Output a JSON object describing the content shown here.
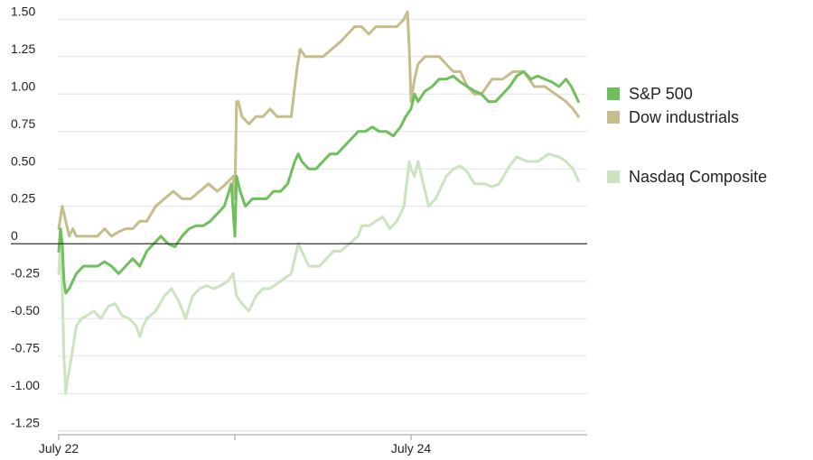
{
  "chart_data": {
    "type": "line",
    "title": "",
    "xlabel": "",
    "ylabel": "",
    "ylim": [
      -1.3,
      1.58
    ],
    "yticks": [
      {
        "value": 1.5,
        "label": "1.50"
      },
      {
        "value": 1.25,
        "label": "1.25"
      },
      {
        "value": 1.0,
        "label": "1.00"
      },
      {
        "value": 0.75,
        "label": "0.75"
      },
      {
        "value": 0.5,
        "label": "0.50"
      },
      {
        "value": 0.25,
        "label": "0.25"
      },
      {
        "value": 0,
        "label": "0"
      },
      {
        "value": -0.25,
        "label": "-0.25"
      },
      {
        "value": -0.5,
        "label": "-0.50"
      },
      {
        "value": -0.75,
        "label": "-0.75"
      },
      {
        "value": -1.0,
        "label": "-1.00"
      },
      {
        "value": -1.25,
        "label": "-1.25"
      }
    ],
    "xlim": [
      0,
      3
    ],
    "xticks": [
      {
        "value": 0,
        "label": "July 22"
      },
      {
        "value": 1,
        "label": ""
      },
      {
        "value": 2,
        "label": "July 24"
      }
    ],
    "grid": true,
    "legend_placement": "right",
    "series": [
      {
        "name": "Nasdaq Composite",
        "color": "#cce3bf",
        "x": [
          0,
          0.01,
          0.02,
          0.03,
          0.04,
          0.05,
          0.06,
          0.08,
          0.1,
          0.13,
          0.16,
          0.2,
          0.24,
          0.28,
          0.32,
          0.36,
          0.4,
          0.44,
          0.46,
          0.48,
          0.5,
          0.55,
          0.6,
          0.64,
          0.68,
          0.72,
          0.76,
          0.8,
          0.84,
          0.88,
          0.92,
          0.96,
          0.99,
          1.01,
          1.04,
          1.08,
          1.12,
          1.16,
          1.2,
          1.26,
          1.32,
          1.36,
          1.38,
          1.42,
          1.48,
          1.52,
          1.56,
          1.6,
          1.65,
          1.7,
          1.72,
          1.76,
          1.8,
          1.84,
          1.88,
          1.92,
          1.96,
          1.99,
          2.0,
          2.02,
          2.04,
          2.08,
          2.1,
          2.14,
          2.2,
          2.24,
          2.28,
          2.32,
          2.36,
          2.42,
          2.46,
          2.5,
          2.56,
          2.6,
          2.66,
          2.72,
          2.78,
          2.84,
          2.88,
          2.92,
          2.95
        ],
        "values": [
          -0.2,
          0.05,
          -0.3,
          -0.75,
          -1.0,
          -0.9,
          -0.85,
          -0.7,
          -0.55,
          -0.5,
          -0.48,
          -0.45,
          -0.5,
          -0.42,
          -0.4,
          -0.48,
          -0.5,
          -0.55,
          -0.62,
          -0.55,
          -0.5,
          -0.45,
          -0.35,
          -0.3,
          -0.38,
          -0.5,
          -0.35,
          -0.3,
          -0.28,
          -0.3,
          -0.28,
          -0.25,
          -0.2,
          -0.35,
          -0.4,
          -0.45,
          -0.35,
          -0.3,
          -0.3,
          -0.25,
          -0.2,
          0.0,
          -0.05,
          -0.15,
          -0.15,
          -0.1,
          -0.05,
          -0.05,
          0.0,
          0.05,
          0.12,
          0.12,
          0.15,
          0.18,
          0.1,
          0.15,
          0.25,
          0.55,
          0.5,
          0.45,
          0.55,
          0.35,
          0.25,
          0.3,
          0.45,
          0.5,
          0.52,
          0.48,
          0.4,
          0.4,
          0.38,
          0.4,
          0.52,
          0.58,
          0.55,
          0.55,
          0.6,
          0.58,
          0.55,
          0.5,
          0.42
        ]
      },
      {
        "name": "Dow industrials",
        "color": "#c5bd8a",
        "x": [
          0,
          0.02,
          0.04,
          0.06,
          0.08,
          0.1,
          0.14,
          0.18,
          0.22,
          0.26,
          0.3,
          0.34,
          0.38,
          0.42,
          0.46,
          0.5,
          0.55,
          0.6,
          0.65,
          0.7,
          0.75,
          0.8,
          0.85,
          0.9,
          0.95,
          0.99,
          1.0,
          1.01,
          1.02,
          1.04,
          1.08,
          1.12,
          1.16,
          1.2,
          1.24,
          1.28,
          1.32,
          1.35,
          1.37,
          1.4,
          1.45,
          1.5,
          1.55,
          1.6,
          1.64,
          1.68,
          1.72,
          1.76,
          1.8,
          1.84,
          1.88,
          1.92,
          1.96,
          1.98,
          1.99,
          2.0,
          2.02,
          2.04,
          2.08,
          2.12,
          2.16,
          2.2,
          2.24,
          2.28,
          2.32,
          2.36,
          2.4,
          2.46,
          2.52,
          2.58,
          2.64,
          2.7,
          2.76,
          2.82,
          2.88,
          2.92,
          2.95
        ],
        "values": [
          0.1,
          0.25,
          0.15,
          0.05,
          0.1,
          0.05,
          0.05,
          0.05,
          0.05,
          0.1,
          0.05,
          0.08,
          0.1,
          0.1,
          0.15,
          0.15,
          0.25,
          0.3,
          0.35,
          0.3,
          0.3,
          0.35,
          0.4,
          0.35,
          0.4,
          0.45,
          0.3,
          0.95,
          0.95,
          0.85,
          0.8,
          0.85,
          0.85,
          0.9,
          0.85,
          0.85,
          0.85,
          1.15,
          1.3,
          1.25,
          1.25,
          1.25,
          1.3,
          1.35,
          1.4,
          1.45,
          1.45,
          1.4,
          1.45,
          1.45,
          1.45,
          1.45,
          1.5,
          1.55,
          1.3,
          0.95,
          1.1,
          1.2,
          1.25,
          1.25,
          1.25,
          1.2,
          1.15,
          1.15,
          1.05,
          1.0,
          1.0,
          1.1,
          1.1,
          1.15,
          1.15,
          1.05,
          1.05,
          1.0,
          0.95,
          0.9,
          0.85
        ]
      },
      {
        "name": "S&P 500",
        "color": "#6fbf5d",
        "x": [
          0,
          0.01,
          0.02,
          0.03,
          0.04,
          0.06,
          0.08,
          0.1,
          0.14,
          0.18,
          0.22,
          0.26,
          0.3,
          0.34,
          0.38,
          0.42,
          0.46,
          0.5,
          0.54,
          0.58,
          0.62,
          0.66,
          0.7,
          0.74,
          0.78,
          0.82,
          0.86,
          0.9,
          0.94,
          0.98,
          1.0,
          1.01,
          1.03,
          1.06,
          1.1,
          1.14,
          1.18,
          1.22,
          1.26,
          1.3,
          1.34,
          1.36,
          1.38,
          1.42,
          1.46,
          1.5,
          1.54,
          1.58,
          1.62,
          1.66,
          1.7,
          1.74,
          1.78,
          1.82,
          1.86,
          1.9,
          1.94,
          1.97,
          2.0,
          2.02,
          2.04,
          2.08,
          2.12,
          2.16,
          2.2,
          2.24,
          2.28,
          2.32,
          2.36,
          2.4,
          2.44,
          2.48,
          2.52,
          2.56,
          2.6,
          2.64,
          2.68,
          2.72,
          2.76,
          2.8,
          2.84,
          2.88,
          2.91,
          2.95
        ],
        "values": [
          -0.05,
          0.1,
          0.0,
          -0.25,
          -0.33,
          -0.3,
          -0.25,
          -0.2,
          -0.15,
          -0.15,
          -0.15,
          -0.12,
          -0.15,
          -0.2,
          -0.15,
          -0.1,
          -0.15,
          -0.05,
          0.0,
          0.05,
          0.0,
          -0.02,
          0.05,
          0.1,
          0.12,
          0.12,
          0.15,
          0.2,
          0.25,
          0.4,
          0.05,
          0.45,
          0.35,
          0.25,
          0.3,
          0.3,
          0.3,
          0.35,
          0.35,
          0.4,
          0.55,
          0.6,
          0.55,
          0.5,
          0.5,
          0.55,
          0.6,
          0.6,
          0.65,
          0.7,
          0.75,
          0.75,
          0.78,
          0.75,
          0.75,
          0.72,
          0.78,
          0.85,
          0.9,
          1.0,
          0.95,
          1.02,
          1.05,
          1.1,
          1.1,
          1.12,
          1.08,
          1.05,
          1.02,
          1.0,
          0.95,
          0.95,
          1.0,
          1.05,
          1.12,
          1.15,
          1.1,
          1.12,
          1.1,
          1.08,
          1.05,
          1.1,
          1.05,
          0.95
        ]
      }
    ],
    "legend": [
      {
        "label": "S&P 500",
        "color": "#6fbf5d"
      },
      {
        "label": "Dow industrials",
        "color": "#c5bd8a"
      },
      {
        "label": "Nasdaq Composite",
        "color": "#cce3bf"
      }
    ]
  }
}
